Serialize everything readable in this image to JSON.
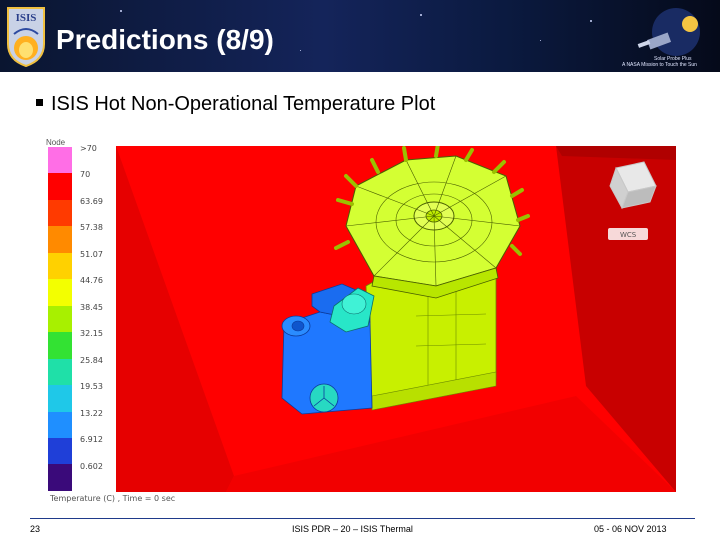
{
  "slide": {
    "title": "Predictions (8/9)",
    "bullet": "ISIS Hot Non-Operational Temperature Plot",
    "logo_text": "ISIS",
    "partner_logo_line1": "Solar Probe Plus",
    "partner_logo_line2": "A NASA Mission to Touch the Sun"
  },
  "legend": {
    "title": "Node",
    "labels": [
      ">70",
      "70",
      "63.69",
      "57.38",
      "51.07",
      "44.76",
      "38.45",
      "32.15",
      "25.84",
      "19.53",
      "13.22",
      "6.912",
      "0.602"
    ],
    "colors": [
      "#ff6ee6",
      "#ff0000",
      "#ff3a00",
      "#ff8a00",
      "#ffd100",
      "#f3ff00",
      "#a8f000",
      "#33e233",
      "#1fe0a8",
      "#1fc8e8",
      "#1f8fff",
      "#1f3fd8",
      "#3a0a7a"
    ]
  },
  "plot": {
    "view_label": "WCS",
    "caption": "Temperature (C) ,  Time = 0 sec"
  },
  "footer": {
    "page": "23",
    "center": "ISIS PDR – 20 – ISIS Thermal",
    "date": "05 - 06 NOV 2013"
  }
}
